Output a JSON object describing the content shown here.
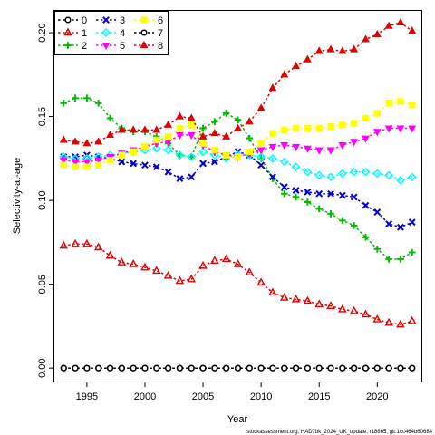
{
  "chart_data": {
    "type": "line",
    "xlabel": "Year",
    "ylabel": "Selectivity-at-age",
    "xlim": [
      1992.2,
      2023.8
    ],
    "ylim": [
      -0.008,
      0.213
    ],
    "x_ticks": [
      1995,
      2000,
      2005,
      2010,
      2015,
      2020
    ],
    "y_ticks": [
      0.0,
      0.05,
      0.1,
      0.15,
      0.2
    ],
    "y_tick_labels": [
      "0.00",
      "0.05",
      "0.10",
      "0.15",
      "0.20"
    ],
    "grid": false,
    "legend_position": "top-left",
    "footer": "stockassessment.org, HAD7bk_2024_UK_update, r18865, git:1cc464b60684",
    "x": [
      1993,
      1994,
      1995,
      1996,
      1997,
      1998,
      1999,
      2000,
      2001,
      2002,
      2003,
      2004,
      2005,
      2006,
      2007,
      2008,
      2009,
      2010,
      2011,
      2012,
      2013,
      2014,
      2015,
      2016,
      2017,
      2018,
      2019,
      2020,
      2021,
      2022,
      2023
    ],
    "series": [
      {
        "name": "0",
        "color": "#000000",
        "marker": "circle-open",
        "values": [
          0,
          0,
          0,
          0,
          0,
          0,
          0,
          0,
          0,
          0,
          0,
          0,
          0,
          0,
          0,
          0,
          0,
          0,
          0,
          0,
          0,
          0,
          0,
          0,
          0,
          0,
          0,
          0,
          0,
          0,
          0
        ]
      },
      {
        "name": "1",
        "color": "#df0000",
        "marker": "triangle-open",
        "values": [
          0.073,
          0.074,
          0.074,
          0.072,
          0.067,
          0.063,
          0.062,
          0.06,
          0.058,
          0.055,
          0.052,
          0.053,
          0.061,
          0.064,
          0.065,
          0.062,
          0.057,
          0.051,
          0.045,
          0.042,
          0.041,
          0.04,
          0.038,
          0.037,
          0.035,
          0.034,
          0.032,
          0.029,
          0.027,
          0.026,
          0.028
        ]
      },
      {
        "name": "2",
        "color": "#00bb00",
        "marker": "plus",
        "values": [
          0.158,
          0.161,
          0.161,
          0.158,
          0.149,
          0.143,
          0.141,
          0.141,
          0.138,
          0.134,
          0.127,
          0.126,
          0.143,
          0.147,
          0.152,
          0.148,
          0.137,
          0.125,
          0.113,
          0.104,
          0.102,
          0.099,
          0.095,
          0.092,
          0.088,
          0.085,
          0.078,
          0.071,
          0.065,
          0.065,
          0.069
        ]
      },
      {
        "name": "3",
        "color": "#0000cc",
        "marker": "cross",
        "values": [
          0.126,
          0.126,
          0.127,
          0.126,
          0.125,
          0.123,
          0.122,
          0.121,
          0.12,
          0.117,
          0.113,
          0.114,
          0.122,
          0.123,
          0.126,
          0.129,
          0.127,
          0.121,
          0.114,
          0.108,
          0.106,
          0.105,
          0.104,
          0.104,
          0.103,
          0.102,
          0.097,
          0.093,
          0.086,
          0.084,
          0.087
        ]
      },
      {
        "name": "4",
        "color": "#00ffff",
        "marker": "diamond-open",
        "values": [
          0.126,
          0.125,
          0.125,
          0.126,
          0.127,
          0.128,
          0.129,
          0.13,
          0.131,
          0.13,
          0.127,
          0.126,
          0.129,
          0.127,
          0.125,
          0.127,
          0.127,
          0.126,
          0.125,
          0.123,
          0.12,
          0.117,
          0.115,
          0.114,
          0.116,
          0.117,
          0.117,
          0.116,
          0.115,
          0.112,
          0.114
        ]
      },
      {
        "name": "5",
        "color": "#ff00ff",
        "marker": "triangle-down",
        "values": [
          0.124,
          0.123,
          0.123,
          0.124,
          0.126,
          0.128,
          0.13,
          0.132,
          0.134,
          0.135,
          0.139,
          0.139,
          0.133,
          0.129,
          0.127,
          0.126,
          0.128,
          0.13,
          0.132,
          0.133,
          0.132,
          0.131,
          0.13,
          0.13,
          0.133,
          0.135,
          0.137,
          0.141,
          0.143,
          0.143,
          0.143
        ]
      },
      {
        "name": "6",
        "color": "#ffff00",
        "marker": "square",
        "values": [
          0.121,
          0.12,
          0.12,
          0.121,
          0.124,
          0.127,
          0.129,
          0.132,
          0.136,
          0.138,
          0.143,
          0.145,
          0.134,
          0.13,
          0.127,
          0.126,
          0.129,
          0.134,
          0.14,
          0.142,
          0.143,
          0.143,
          0.143,
          0.144,
          0.145,
          0.146,
          0.149,
          0.152,
          0.158,
          0.159,
          0.157
        ]
      },
      {
        "name": "7",
        "color": "#000000",
        "marker": "circle-open-dotted",
        "values": [
          0,
          0,
          0,
          0,
          0,
          0,
          0,
          0,
          0,
          0,
          0,
          0,
          0,
          0,
          0,
          0,
          0,
          0,
          0,
          0,
          0,
          0,
          0,
          0,
          0,
          0,
          0,
          0,
          0,
          0,
          0
        ]
      },
      {
        "name": "8",
        "color": "#df0000",
        "marker": "triangle",
        "values": [
          0.136,
          0.135,
          0.134,
          0.135,
          0.139,
          0.142,
          0.142,
          0.142,
          0.142,
          0.145,
          0.15,
          0.149,
          0.138,
          0.14,
          0.138,
          0.143,
          0.147,
          0.155,
          0.167,
          0.175,
          0.18,
          0.184,
          0.189,
          0.19,
          0.189,
          0.19,
          0.196,
          0.199,
          0.204,
          0.206,
          0.201
        ]
      }
    ]
  }
}
